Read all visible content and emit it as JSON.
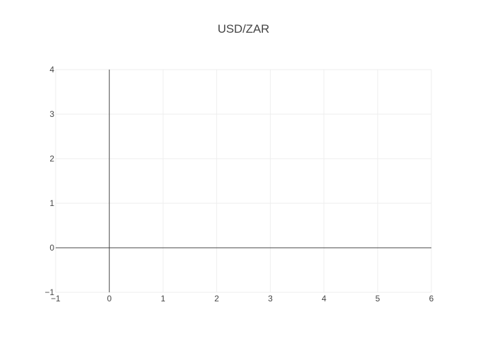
{
  "chart_data": {
    "type": "line",
    "title": "USD/ZAR",
    "xlabel": "",
    "ylabel": "",
    "xlim": [
      -1,
      6
    ],
    "ylim": [
      -1,
      4
    ],
    "x_ticks": [
      -1,
      0,
      1,
      2,
      3,
      4,
      5,
      6
    ],
    "y_ticks": [
      -1,
      0,
      1,
      2,
      3,
      4
    ],
    "grid": true,
    "series": []
  },
  "colors": {
    "grid": "#eeeeee",
    "zeroline": "#444444",
    "text": "#444444"
  }
}
